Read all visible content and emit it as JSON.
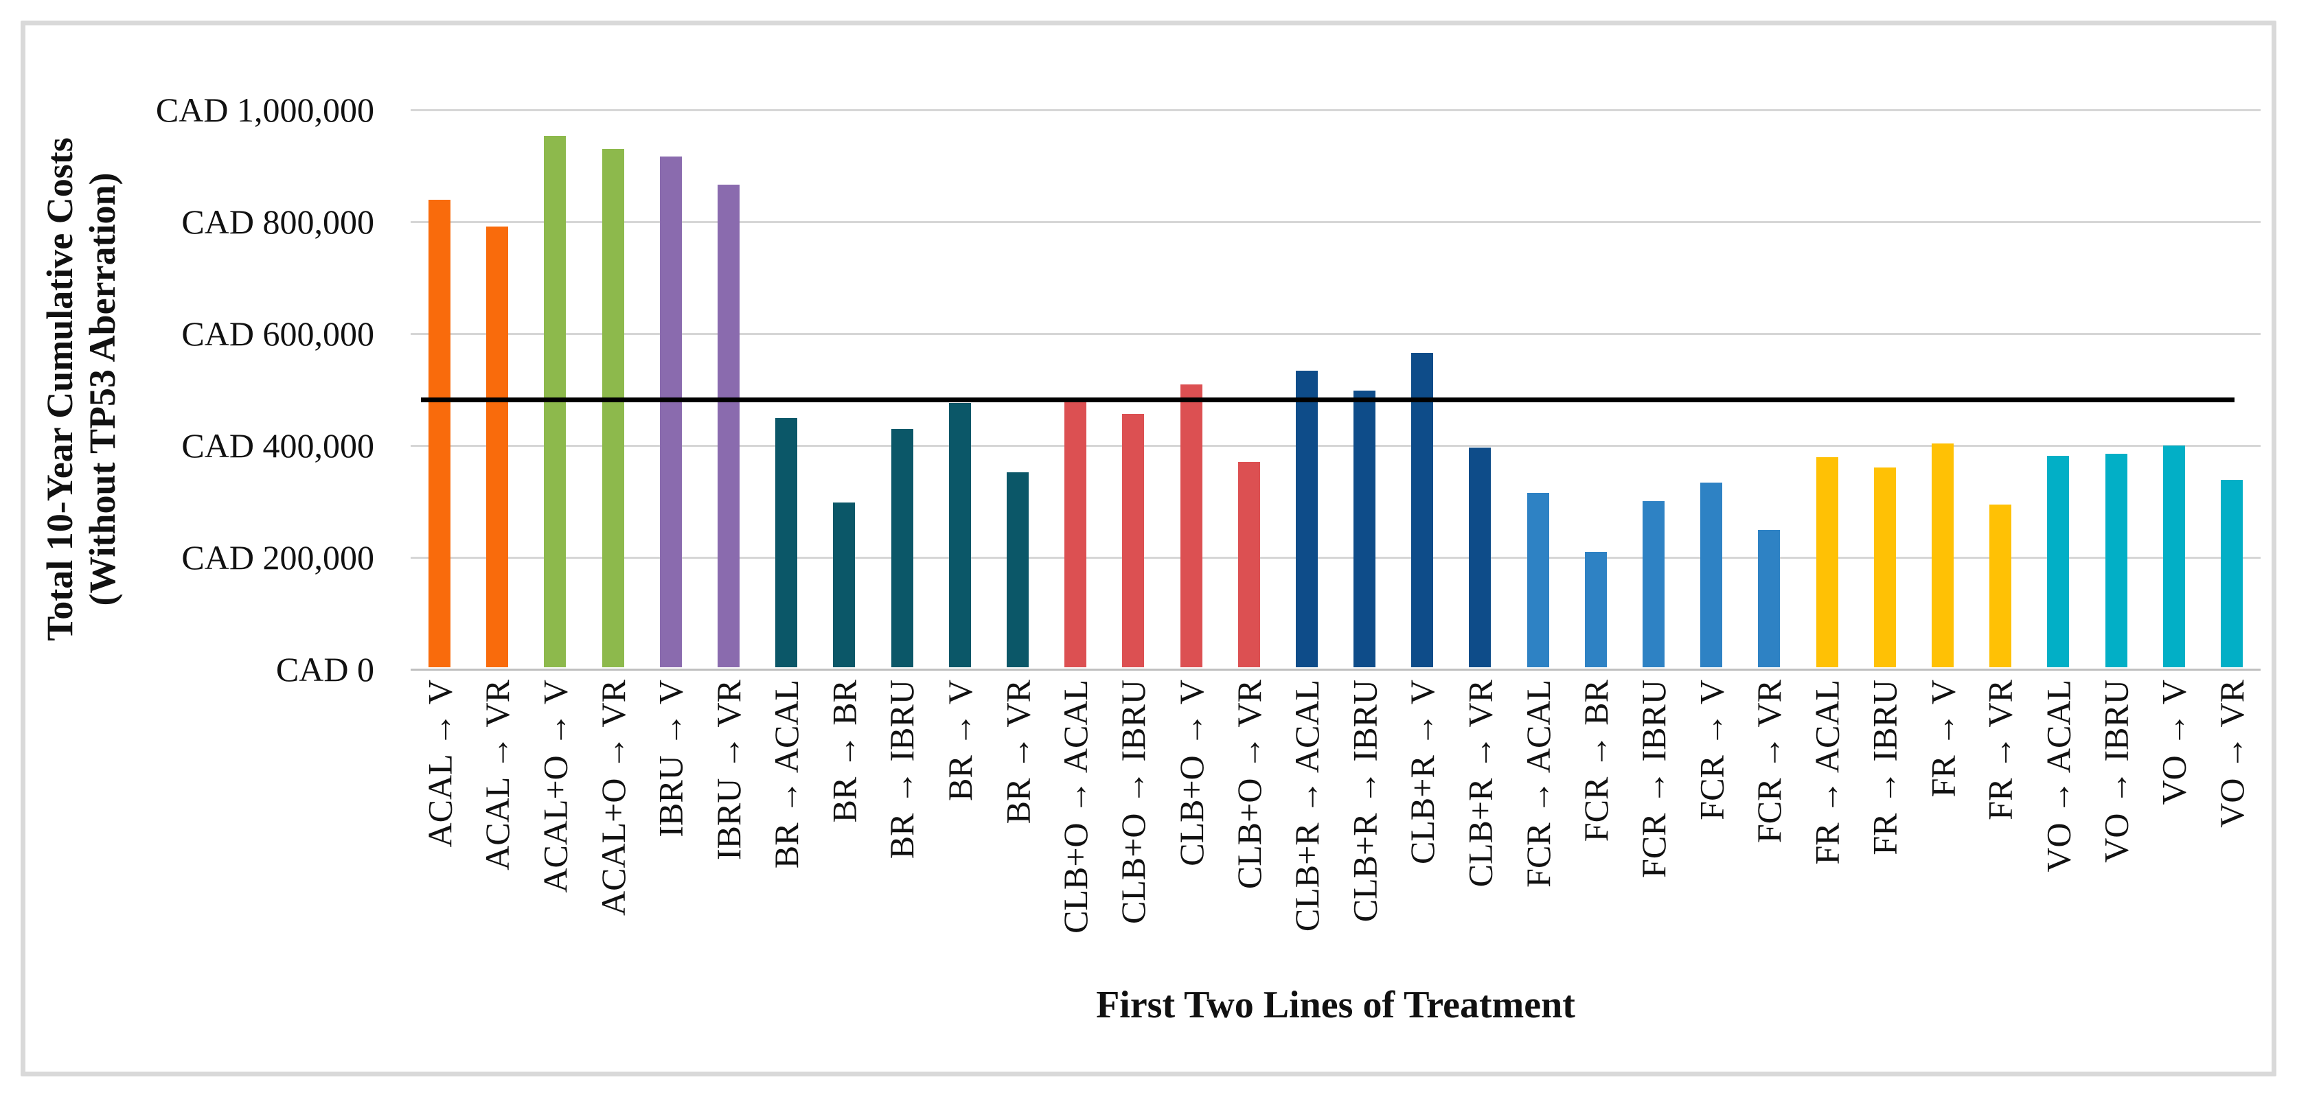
{
  "figure": {
    "y_axis_title_line1": "Total 10-Year Cumulative Costs",
    "y_axis_title_line2": "(Without TP53 Aberration)",
    "x_axis_title": "First Two Lines of Treatment",
    "border_color": "#d9d9d9",
    "background": "#ffffff"
  },
  "chart_data": {
    "type": "bar",
    "title": "",
    "xlabel": "First Two Lines of Treatment",
    "ylabel": "Total 10-Year Cumulative Costs (Without TP53 Aberration)",
    "ylim": [
      0,
      1000000
    ],
    "grid": true,
    "legend": "none",
    "gridline_color": "#d6d6d6",
    "y_ticks": [
      {
        "value": 0,
        "label": "CAD 0"
      },
      {
        "value": 200000,
        "label": "CAD 200,000"
      },
      {
        "value": 400000,
        "label": "CAD 400,000"
      },
      {
        "value": 600000,
        "label": "CAD 600,000"
      },
      {
        "value": 800000,
        "label": "CAD 800,000"
      },
      {
        "value": 1000000,
        "label": "CAD 1,000,000"
      }
    ],
    "reference_line": {
      "value": 482000,
      "color": "#000000"
    },
    "group_colors": {
      "ACAL": "#f96b0c",
      "ACAL+O": "#8db94c",
      "IBRU": "#8a6bae",
      "BR": "#0b5768",
      "CLB+O": "#dc5052",
      "CLB+R": "#0e4c89",
      "FCR": "#2e82c4",
      "FR": "#ffc105",
      "VO": "#02afc6"
    },
    "bars": [
      {
        "category": "ACAL → V",
        "value": 835000,
        "group": "ACAL",
        "color": "#f96b0c"
      },
      {
        "category": "ACAL → VR",
        "value": 788000,
        "group": "ACAL",
        "color": "#f96b0c"
      },
      {
        "category": "ACAL+O → V",
        "value": 950000,
        "group": "ACAL+O",
        "color": "#8db94c"
      },
      {
        "category": "ACAL+O → VR",
        "value": 926000,
        "group": "ACAL+O",
        "color": "#8db94c"
      },
      {
        "category": "IBRU → V",
        "value": 913000,
        "group": "IBRU",
        "color": "#8a6bae"
      },
      {
        "category": "IBRU → VR",
        "value": 862000,
        "group": "IBRU",
        "color": "#8a6bae"
      },
      {
        "category": "BR → ACAL",
        "value": 445000,
        "group": "BR",
        "color": "#0b5768"
      },
      {
        "category": "BR → BR",
        "value": 295000,
        "group": "BR",
        "color": "#0b5768"
      },
      {
        "category": "BR → IBRU",
        "value": 426000,
        "group": "BR",
        "color": "#0b5768"
      },
      {
        "category": "BR → V",
        "value": 473000,
        "group": "BR",
        "color": "#0b5768"
      },
      {
        "category": "BR → VR",
        "value": 348000,
        "group": "BR",
        "color": "#0b5768"
      },
      {
        "category": "CLB+O → ACAL",
        "value": 480000,
        "group": "CLB+O",
        "color": "#dc5052"
      },
      {
        "category": "CLB+O → IBRU",
        "value": 453000,
        "group": "CLB+O",
        "color": "#dc5052"
      },
      {
        "category": "CLB+O → V",
        "value": 505000,
        "group": "CLB+O",
        "color": "#dc5052"
      },
      {
        "category": "CLB+O → VR",
        "value": 367000,
        "group": "CLB+O",
        "color": "#dc5052"
      },
      {
        "category": "CLB+R → ACAL",
        "value": 530000,
        "group": "CLB+R",
        "color": "#0e4c89"
      },
      {
        "category": "CLB+R → IBRU",
        "value": 494000,
        "group": "CLB+R",
        "color": "#0e4c89"
      },
      {
        "category": "CLB+R → V",
        "value": 562000,
        "group": "CLB+R",
        "color": "#0e4c89"
      },
      {
        "category": "CLB+R → VR",
        "value": 393000,
        "group": "CLB+R",
        "color": "#0e4c89"
      },
      {
        "category": "FCR → ACAL",
        "value": 312000,
        "group": "FCR",
        "color": "#2e82c4"
      },
      {
        "category": "FCR → BR",
        "value": 206000,
        "group": "FCR",
        "color": "#2e82c4"
      },
      {
        "category": "FCR → IBRU",
        "value": 297000,
        "group": "FCR",
        "color": "#2e82c4"
      },
      {
        "category": "FCR → V",
        "value": 330000,
        "group": "FCR",
        "color": "#2e82c4"
      },
      {
        "category": "FCR → VR",
        "value": 246000,
        "group": "FCR",
        "color": "#2e82c4"
      },
      {
        "category": "FR → ACAL",
        "value": 375000,
        "group": "FR",
        "color": "#ffc105"
      },
      {
        "category": "FR → IBRU",
        "value": 357000,
        "group": "FR",
        "color": "#ffc105"
      },
      {
        "category": "FR → V",
        "value": 400000,
        "group": "FR",
        "color": "#ffc105"
      },
      {
        "category": "FR → VR",
        "value": 291000,
        "group": "FR",
        "color": "#ffc105"
      },
      {
        "category": "VO → ACAL",
        "value": 378000,
        "group": "VO",
        "color": "#02afc6"
      },
      {
        "category": "VO → IBRU",
        "value": 382000,
        "group": "VO",
        "color": "#02afc6"
      },
      {
        "category": "VO → V",
        "value": 396000,
        "group": "VO",
        "color": "#02afc6"
      },
      {
        "category": "VO → VR",
        "value": 335000,
        "group": "VO",
        "color": "#02afc6"
      }
    ]
  }
}
